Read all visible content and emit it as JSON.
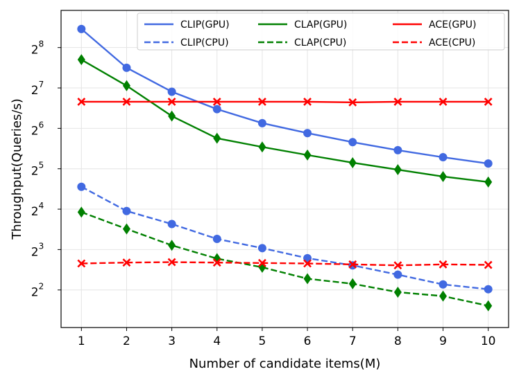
{
  "chart_data": {
    "type": "line",
    "xlabel": "Number of candidate items(M)",
    "ylabel": "Throughput(Queries/s)",
    "x": [
      1,
      2,
      3,
      4,
      5,
      6,
      7,
      8,
      9,
      10
    ],
    "xlim": [
      0.55,
      10.45
    ],
    "y_scale": "log2",
    "ylim_log2": [
      1.07,
      8.92
    ],
    "grid": true,
    "legend_position": "top-right",
    "legend_columns": 3,
    "x_ticks": [
      "1",
      "2",
      "3",
      "4",
      "5",
      "6",
      "7",
      "8",
      "9",
      "10"
    ],
    "y_ticks": [
      {
        "base": "2",
        "exp": "2",
        "value": 4
      },
      {
        "base": "2",
        "exp": "3",
        "value": 8
      },
      {
        "base": "2",
        "exp": "4",
        "value": 16
      },
      {
        "base": "2",
        "exp": "5",
        "value": 32
      },
      {
        "base": "2",
        "exp": "6",
        "value": 64
      },
      {
        "base": "2",
        "exp": "7",
        "value": 128
      },
      {
        "base": "2",
        "exp": "8",
        "value": 256
      }
    ],
    "series": [
      {
        "name": "CLIP(GPU)",
        "color": "#4169e1",
        "dash": "solid",
        "marker": "circle",
        "values": [
          352,
          181,
          120,
          89,
          70,
          59,
          50.5,
          44,
          39,
          35
        ]
      },
      {
        "name": "CLIP(CPU)",
        "color": "#4169e1",
        "dash": "dashed",
        "marker": "circle",
        "values": [
          23.5,
          15.5,
          12.4,
          9.6,
          8.2,
          6.9,
          6.1,
          5.2,
          4.4,
          4.05
        ]
      },
      {
        "name": "CLAP(GPU)",
        "color": "#008000",
        "dash": "solid",
        "marker": "diamond",
        "values": [
          208,
          133,
          79,
          54,
          46.5,
          40.5,
          35.5,
          31.5,
          28,
          25.5
        ]
      },
      {
        "name": "CLAP(CPU)",
        "color": "#008000",
        "dash": "dashed",
        "marker": "diamond",
        "values": [
          15.2,
          11.4,
          8.6,
          6.85,
          5.9,
          4.85,
          4.45,
          3.85,
          3.6,
          3.05
        ]
      },
      {
        "name": "ACE(GPU)",
        "color": "#ff0000",
        "dash": "solid",
        "marker": "x",
        "values": [
          101,
          101,
          101,
          101,
          101,
          101,
          100,
          101,
          101,
          101
        ]
      },
      {
        "name": "ACE(CPU)",
        "color": "#ff0000",
        "dash": "dashed",
        "marker": "x",
        "values": [
          6.3,
          6.4,
          6.45,
          6.4,
          6.35,
          6.3,
          6.2,
          6.1,
          6.2,
          6.15
        ]
      }
    ]
  }
}
